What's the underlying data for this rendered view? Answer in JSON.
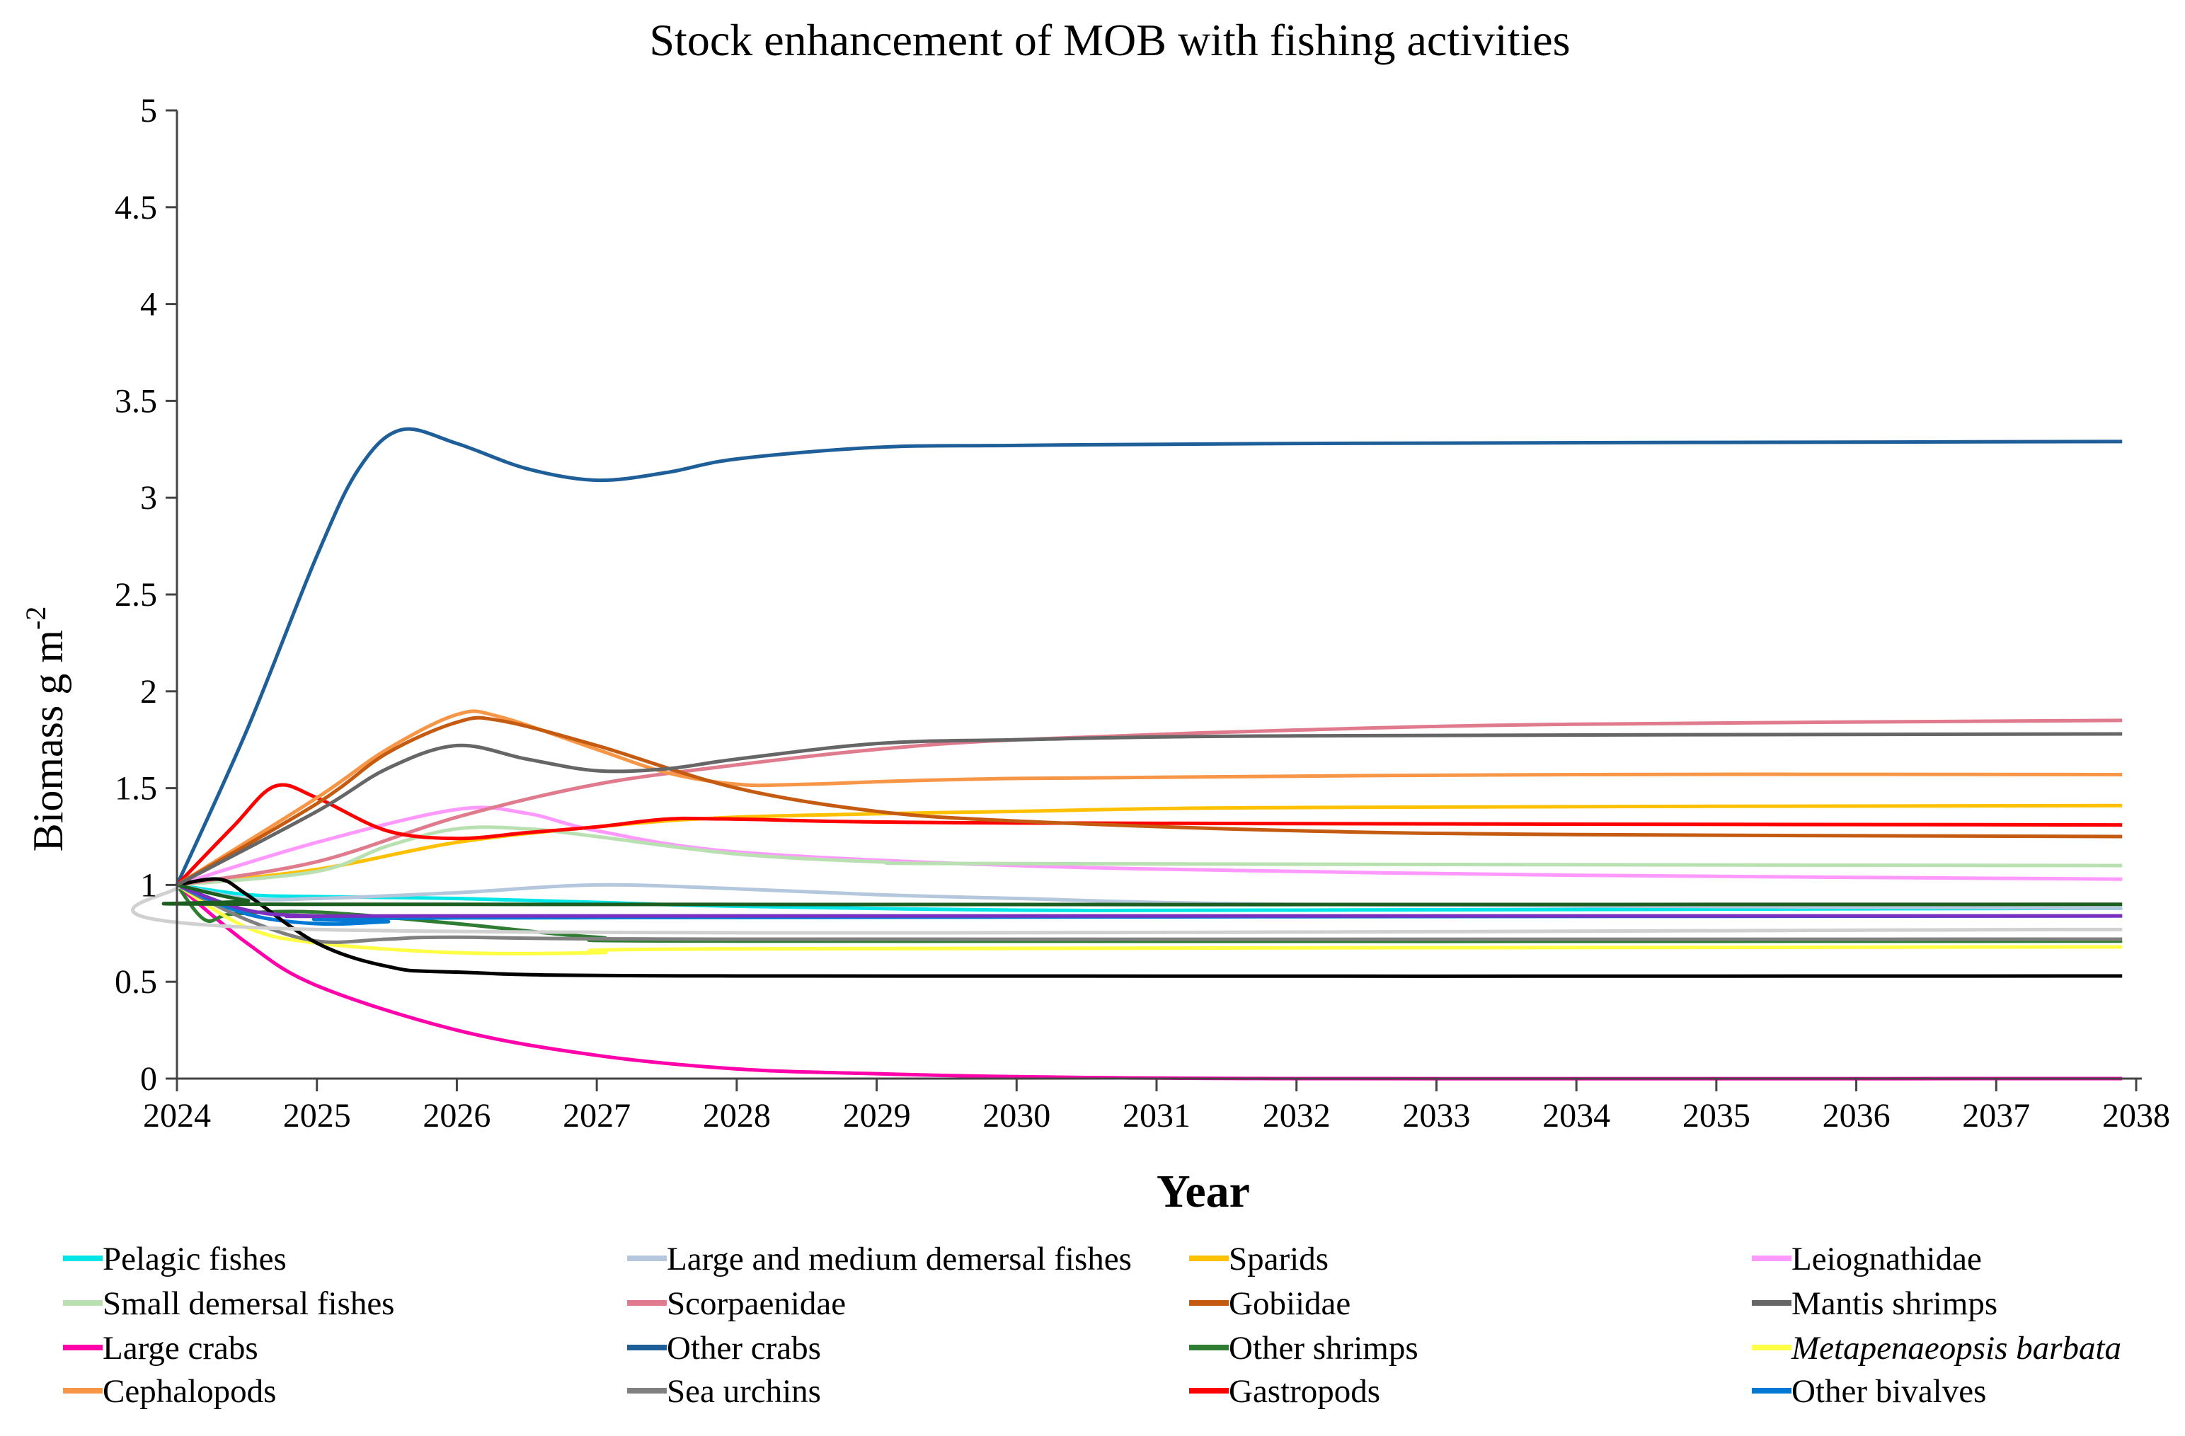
{
  "chart_data": {
    "type": "line",
    "title": "Stock enhancement of MOB with fishing activities",
    "xlabel": "Year",
    "ylabel": "Biomass  g m",
    "ylabel_superscript": "-2",
    "xlim": [
      2024,
      2038
    ],
    "ylim": [
      0,
      5
    ],
    "x_ticks": [
      "2024",
      "2025",
      "2026",
      "2027",
      "2028",
      "2029",
      "2030",
      "2031",
      "2032",
      "2033",
      "2034",
      "2035",
      "2036",
      "2037",
      "2038"
    ],
    "y_ticks": [
      "0",
      "0.5",
      "1",
      "1.5",
      "2",
      "2.5",
      "3",
      "3.5",
      "4",
      "4.5",
      "5"
    ],
    "grid": false,
    "legend_placement": "bottom",
    "series": [
      {
        "name": "Pelagic fishes",
        "color": "#00e5e5",
        "points": [
          [
            2024,
            1
          ],
          [
            2024.5,
            0.95
          ],
          [
            2025,
            0.94
          ],
          [
            2026,
            0.93
          ],
          [
            2027,
            0.91
          ],
          [
            2028,
            0.89
          ],
          [
            2030,
            0.87
          ],
          [
            2032,
            0.87
          ],
          [
            2037.9,
            0.88
          ]
        ]
      },
      {
        "name": "Large and medium demersal fishes",
        "color": "#b4c7dc",
        "points": [
          [
            2024,
            1
          ],
          [
            2024.5,
            0.93
          ],
          [
            2025,
            0.93
          ],
          [
            2026,
            0.96
          ],
          [
            2027,
            1.0
          ],
          [
            2028,
            0.98
          ],
          [
            2029,
            0.95
          ],
          [
            2030,
            0.93
          ],
          [
            2032,
            0.9
          ],
          [
            2037.9,
            0.88
          ]
        ]
      },
      {
        "name": "Sparids",
        "color": "#ffc000",
        "points": [
          [
            2024,
            1
          ],
          [
            2025,
            1.08
          ],
          [
            2026,
            1.22
          ],
          [
            2027,
            1.3
          ],
          [
            2028,
            1.35
          ],
          [
            2030,
            1.38
          ],
          [
            2032,
            1.4
          ],
          [
            2037.9,
            1.41
          ]
        ]
      },
      {
        "name": "Leiognathidae",
        "color": "#ff99ff",
        "points": [
          [
            2024,
            1
          ],
          [
            2025,
            1.22
          ],
          [
            2026,
            1.39
          ],
          [
            2026.5,
            1.37
          ],
          [
            2027,
            1.28
          ],
          [
            2028,
            1.17
          ],
          [
            2030,
            1.1
          ],
          [
            2032,
            1.07
          ],
          [
            2034,
            1.05
          ],
          [
            2037.9,
            1.03
          ]
        ]
      },
      {
        "name": "Small demersal fishes",
        "color": "#b8e0b0",
        "points": [
          [
            2024,
            1
          ],
          [
            2025,
            1.07
          ],
          [
            2025.5,
            1.2
          ],
          [
            2026,
            1.29
          ],
          [
            2026.5,
            1.29
          ],
          [
            2027,
            1.25
          ],
          [
            2028,
            1.16
          ],
          [
            2029,
            1.12
          ],
          [
            2030,
            1.11
          ],
          [
            2037.9,
            1.1
          ]
        ]
      },
      {
        "name": "Scorpaenidae",
        "color": "#e07b8e",
        "points": [
          [
            2024,
            1
          ],
          [
            2025,
            1.12
          ],
          [
            2026,
            1.35
          ],
          [
            2027,
            1.52
          ],
          [
            2028,
            1.62
          ],
          [
            2029,
            1.7
          ],
          [
            2030,
            1.75
          ],
          [
            2032,
            1.8
          ],
          [
            2034,
            1.83
          ],
          [
            2037.9,
            1.85
          ]
        ]
      },
      {
        "name": "Gobiidae",
        "color": "#c55a11",
        "points": [
          [
            2024,
            1
          ],
          [
            2025,
            1.42
          ],
          [
            2025.5,
            1.68
          ],
          [
            2026,
            1.84
          ],
          [
            2026.3,
            1.85
          ],
          [
            2027,
            1.72
          ],
          [
            2028,
            1.5
          ],
          [
            2029,
            1.38
          ],
          [
            2030,
            1.33
          ],
          [
            2032,
            1.28
          ],
          [
            2034,
            1.26
          ],
          [
            2037.9,
            1.25
          ]
        ]
      },
      {
        "name": "Mantis shrimps",
        "color": "#666666",
        "points": [
          [
            2024,
            1
          ],
          [
            2025,
            1.38
          ],
          [
            2025.5,
            1.6
          ],
          [
            2026,
            1.72
          ],
          [
            2026.5,
            1.65
          ],
          [
            2027,
            1.59
          ],
          [
            2027.5,
            1.6
          ],
          [
            2028,
            1.65
          ],
          [
            2029,
            1.73
          ],
          [
            2030,
            1.75
          ],
          [
            2032,
            1.77
          ],
          [
            2037.9,
            1.78
          ]
        ]
      },
      {
        "name": "Large crabs",
        "color": "#ff00aa",
        "points": [
          [
            2024,
            1
          ],
          [
            2024.5,
            0.7
          ],
          [
            2025,
            0.48
          ],
          [
            2026,
            0.25
          ],
          [
            2027,
            0.12
          ],
          [
            2028,
            0.05
          ],
          [
            2029,
            0.025
          ],
          [
            2030,
            0.01
          ],
          [
            2032,
            0
          ],
          [
            2037.9,
            0
          ]
        ]
      },
      {
        "name": "Other crabs",
        "color": "#1f5f99",
        "points": [
          [
            2024,
            1
          ],
          [
            2024.5,
            1.8
          ],
          [
            2025,
            2.7
          ],
          [
            2025.3,
            3.15
          ],
          [
            2025.6,
            3.35
          ],
          [
            2026,
            3.28
          ],
          [
            2026.5,
            3.15
          ],
          [
            2027,
            3.09
          ],
          [
            2027.5,
            3.13
          ],
          [
            2028,
            3.2
          ],
          [
            2029,
            3.26
          ],
          [
            2030,
            3.27
          ],
          [
            2032,
            3.28
          ],
          [
            2037.9,
            3.29
          ]
        ]
      },
      {
        "name": "Other shrimps",
        "color": "#2e7d32",
        "points": [
          [
            2024,
            1
          ],
          [
            2024.2,
            0.82
          ],
          [
            2024.4,
            0.85
          ],
          [
            2025,
            0.86
          ],
          [
            2026,
            0.8
          ],
          [
            2027,
            0.73
          ],
          [
            2028,
            0.71
          ],
          [
            2037.9,
            0.71
          ]
        ]
      },
      {
        "name": "Metapenaeopsis barbata",
        "italic": true,
        "color": "#ffff44",
        "points": [
          [
            2024,
            1
          ],
          [
            2024.5,
            0.78
          ],
          [
            2025,
            0.7
          ],
          [
            2026,
            0.65
          ],
          [
            2027,
            0.65
          ],
          [
            2028,
            0.67
          ],
          [
            2037.9,
            0.68
          ]
        ]
      },
      {
        "name": "Cephalopods",
        "color": "#f79646",
        "points": [
          [
            2024,
            1
          ],
          [
            2025,
            1.45
          ],
          [
            2025.5,
            1.7
          ],
          [
            2026,
            1.88
          ],
          [
            2026.3,
            1.87
          ],
          [
            2027,
            1.7
          ],
          [
            2027.5,
            1.58
          ],
          [
            2028,
            1.52
          ],
          [
            2028.5,
            1.52
          ],
          [
            2030,
            1.55
          ],
          [
            2034,
            1.57
          ],
          [
            2037.9,
            1.57
          ]
        ]
      },
      {
        "name": "Sea urchins",
        "color": "#808080",
        "points": [
          [
            2024,
            1
          ],
          [
            2024.5,
            0.82
          ],
          [
            2025,
            0.71
          ],
          [
            2025.5,
            0.72
          ],
          [
            2026,
            0.73
          ],
          [
            2028,
            0.72
          ],
          [
            2037.9,
            0.72
          ]
        ]
      },
      {
        "name": "Gastropods",
        "color": "#ff0000",
        "points": [
          [
            2024,
            1
          ],
          [
            2024.4,
            1.3
          ],
          [
            2024.7,
            1.51
          ],
          [
            2025,
            1.45
          ],
          [
            2025.5,
            1.28
          ],
          [
            2026,
            1.24
          ],
          [
            2026.5,
            1.27
          ],
          [
            2027,
            1.3
          ],
          [
            2027.5,
            1.34
          ],
          [
            2028,
            1.34
          ],
          [
            2030,
            1.32
          ],
          [
            2037.9,
            1.31
          ]
        ]
      },
      {
        "name": "Other bivalves",
        "color": "#0078d4",
        "points": [
          [
            2024,
            1
          ],
          [
            2024.5,
            0.85
          ],
          [
            2025,
            0.8
          ],
          [
            2025.5,
            0.81
          ],
          [
            2026,
            0.83
          ],
          [
            2037.9,
            0.84
          ]
        ]
      },
      {
        "color": "#000000",
        "points": [
          [
            2024,
            1
          ],
          [
            2024.3,
            1.03
          ],
          [
            2024.5,
            0.95
          ],
          [
            2025,
            0.7
          ],
          [
            2025.5,
            0.58
          ],
          [
            2026,
            0.55
          ],
          [
            2028,
            0.53
          ],
          [
            2037.9,
            0.53
          ]
        ]
      },
      {
        "color": "#7b2fbf",
        "points": [
          [
            2024,
            1
          ],
          [
            2024.5,
            0.87
          ],
          [
            2025,
            0.84
          ],
          [
            2026,
            0.84
          ],
          [
            2037.9,
            0.84
          ]
        ]
      },
      {
        "color": "#d0d0d0",
        "points": [
          [
            2024,
            1
          ],
          [
            2025,
            0.77
          ],
          [
            2037.9,
            0.77
          ]
        ]
      },
      {
        "color": "#1b5e20",
        "points": [
          [
            2024,
            1
          ],
          [
            2024.5,
            0.92
          ],
          [
            2025,
            0.9
          ],
          [
            2037.9,
            0.9
          ]
        ]
      }
    ]
  }
}
